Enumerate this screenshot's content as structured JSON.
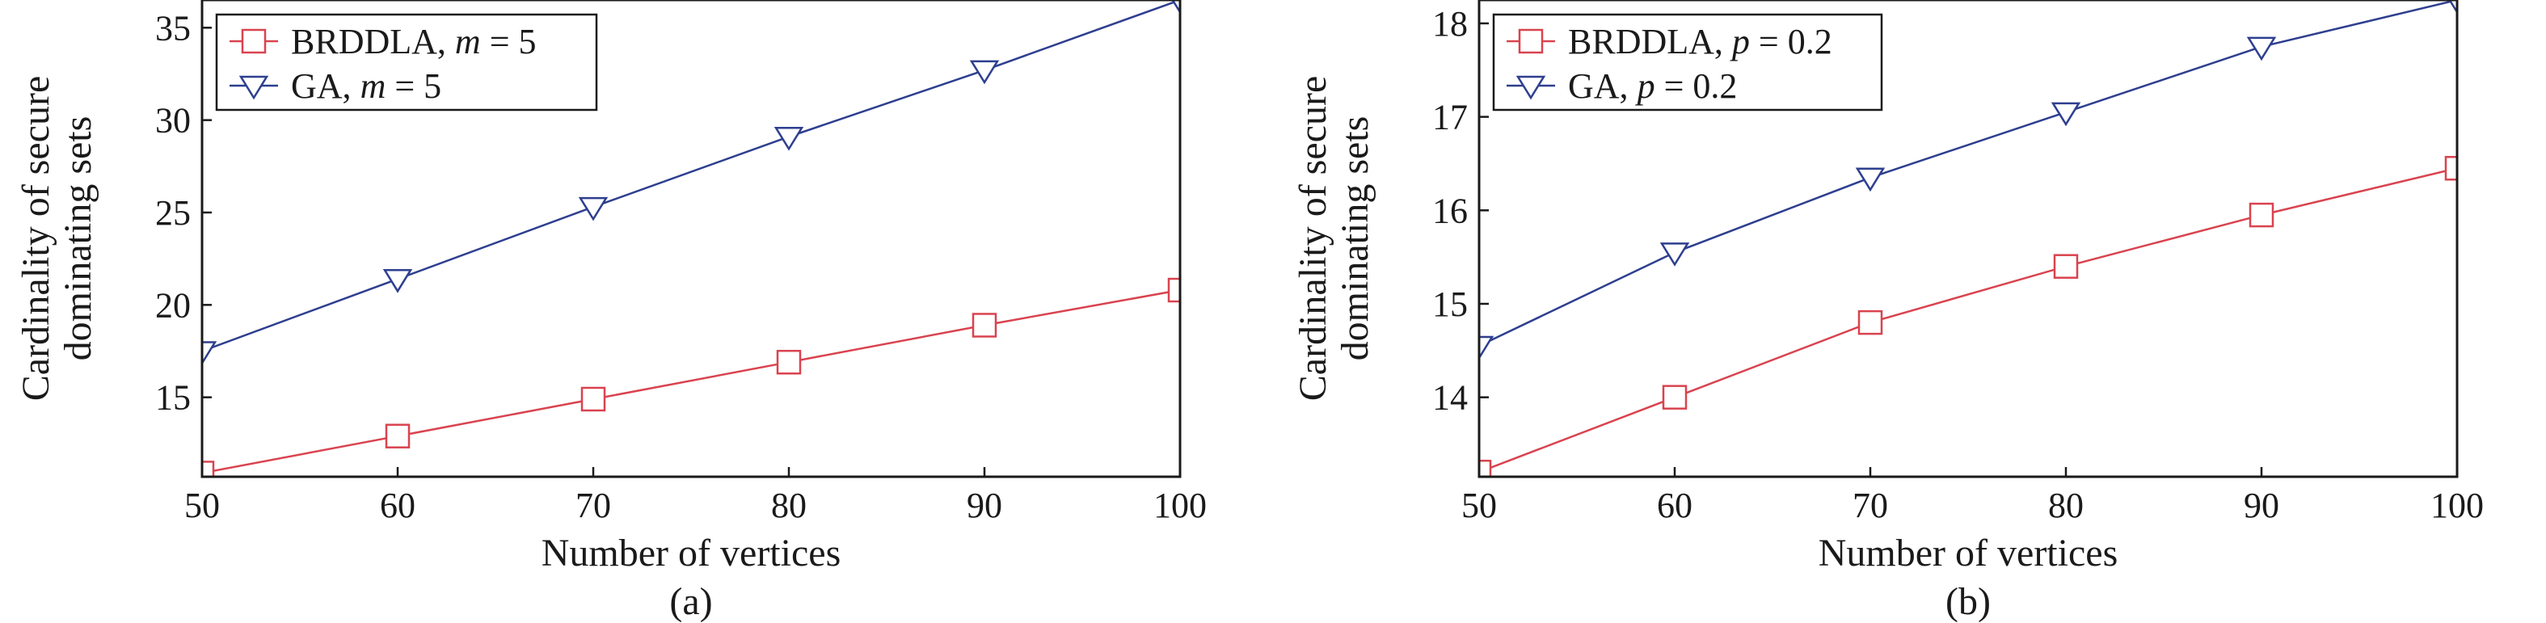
{
  "chart_data": [
    {
      "type": "line",
      "caption": "(a)",
      "xlabel": "Number of vertices",
      "ylabel": [
        "Cardinality of secure",
        "dominating sets"
      ],
      "xlim": [
        50,
        100
      ],
      "ylim": [
        10.7,
        36.5
      ],
      "xticks": [
        50,
        60,
        70,
        80,
        90,
        100
      ],
      "yticks": [
        15,
        20,
        25,
        30,
        35
      ],
      "legend_position": "top-left",
      "series": [
        {
          "name": "BRDDLA, ",
          "param": "m",
          "suffix": " = 5",
          "marker": "square",
          "color": "#d9434f",
          "x": [
            50,
            60,
            70,
            80,
            90,
            100
          ],
          "y": [
            10.9,
            12.9,
            14.9,
            16.9,
            18.9,
            20.8
          ]
        },
        {
          "name": "GA, ",
          "param": "m",
          "suffix": " = 5",
          "marker": "triangle-down",
          "color": "#2e3f8f",
          "x": [
            50,
            60,
            70,
            80,
            90,
            100
          ],
          "y": [
            17.5,
            21.4,
            25.3,
            29.1,
            32.7,
            36.5
          ]
        }
      ]
    },
    {
      "type": "line",
      "caption": "(b)",
      "xlabel": "Number of vertices",
      "ylabel": [
        "Cardinality of secure",
        "dominating sets"
      ],
      "xlim": [
        50,
        100
      ],
      "ylim": [
        13.15,
        18.25
      ],
      "xticks": [
        50,
        60,
        70,
        80,
        90,
        100
      ],
      "yticks": [
        14,
        15,
        16,
        17,
        18
      ],
      "legend_position": "top-left",
      "series": [
        {
          "name": "BRDDLA, ",
          "param": "p",
          "suffix": " = 0.2",
          "marker": "square",
          "color": "#d9434f",
          "x": [
            50,
            60,
            70,
            80,
            90,
            100
          ],
          "y": [
            13.2,
            14.0,
            14.8,
            15.4,
            15.95,
            16.45
          ]
        },
        {
          "name": "GA, ",
          "param": "p",
          "suffix": " = 0.2",
          "marker": "triangle-down",
          "color": "#2e3f8f",
          "x": [
            50,
            60,
            70,
            80,
            90,
            100
          ],
          "y": [
            14.55,
            15.55,
            16.35,
            17.05,
            17.75,
            18.25
          ]
        }
      ]
    }
  ]
}
